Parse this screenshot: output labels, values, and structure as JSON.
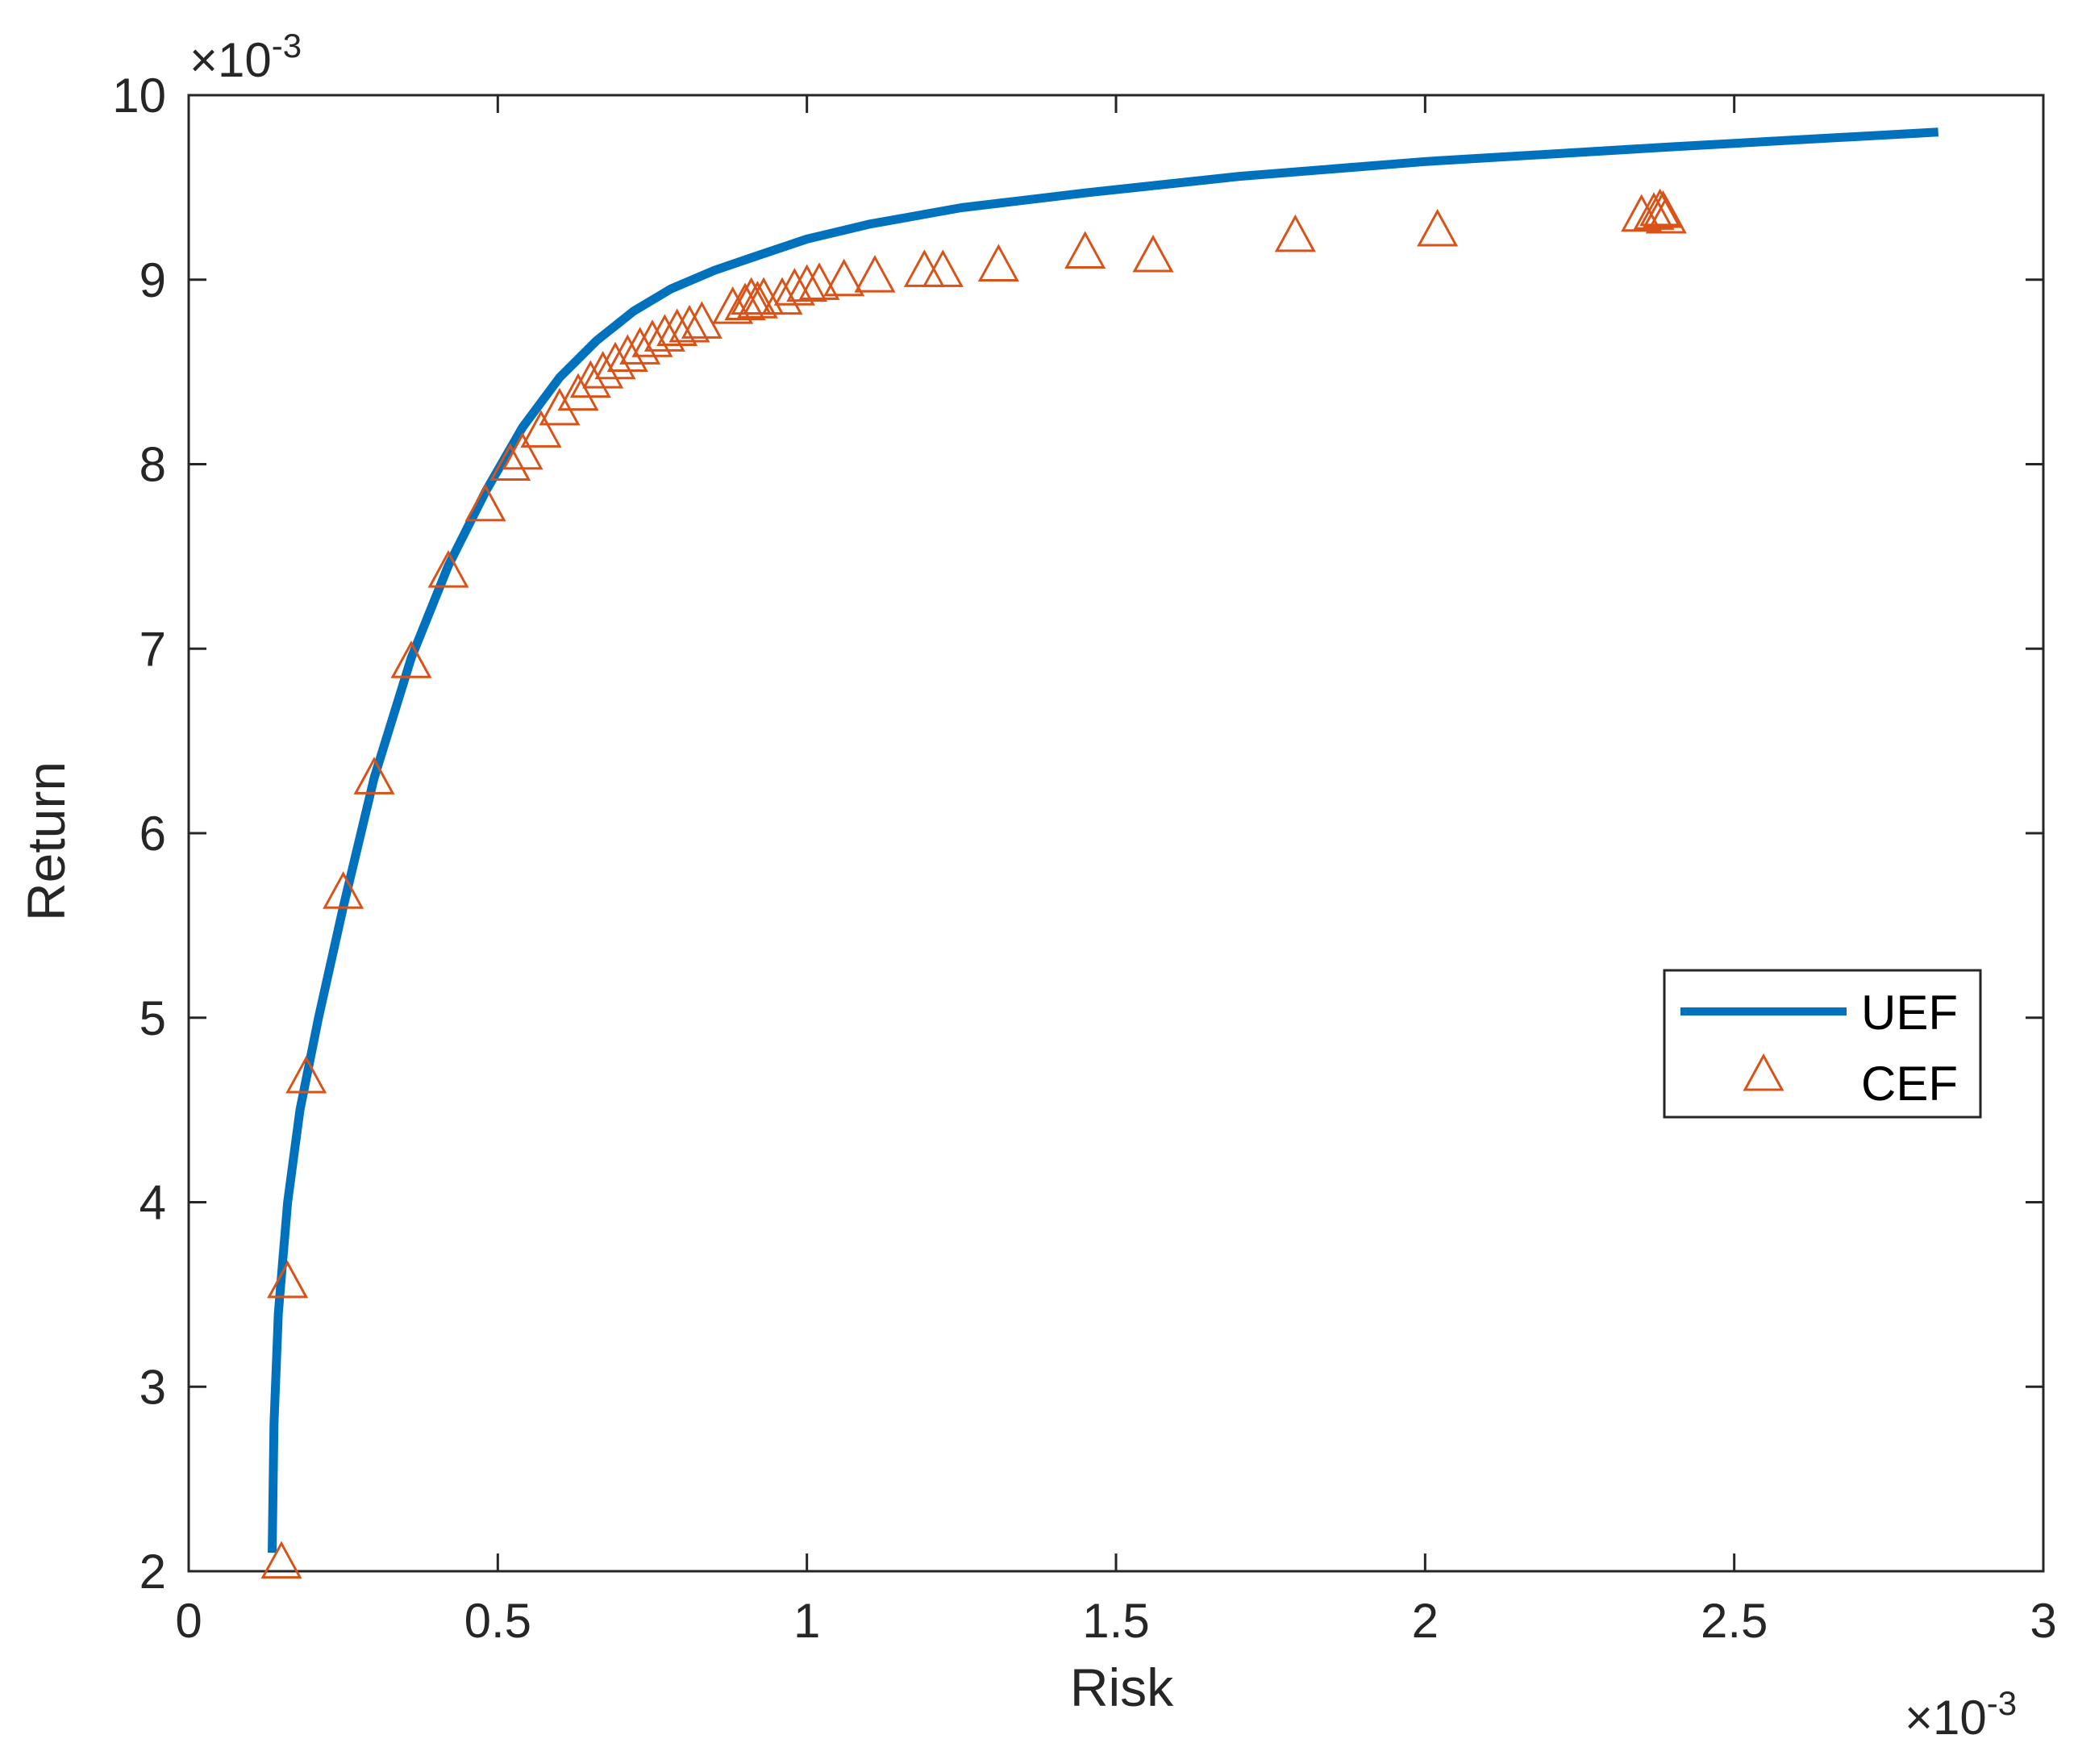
{
  "chart_data": {
    "type": "scatter",
    "xlabel": "Risk",
    "ylabel": "Return",
    "x_multiplier_label": "×10",
    "x_multiplier_exp": "-3",
    "y_multiplier_label": "×10",
    "y_multiplier_exp": "-3",
    "xlim": [
      0,
      3
    ],
    "ylim": [
      2,
      10
    ],
    "xticks": [
      0,
      0.5,
      1,
      1.5,
      2,
      2.5,
      3
    ],
    "xtick_labels": [
      "0",
      "0.5",
      "1",
      "1.5",
      "2",
      "2.5",
      "3"
    ],
    "yticks": [
      2,
      3,
      4,
      5,
      6,
      7,
      8,
      9,
      10
    ],
    "ytick_labels": [
      "2",
      "3",
      "4",
      "5",
      "6",
      "7",
      "8",
      "9",
      "10"
    ],
    "grid": false,
    "legend_position": "right",
    "series": [
      {
        "name": "UEF",
        "kind": "line",
        "color": "#0072BD",
        "x": [
          0.135,
          0.138,
          0.145,
          0.16,
          0.18,
          0.21,
          0.25,
          0.3,
          0.36,
          0.42,
          0.48,
          0.54,
          0.6,
          0.66,
          0.72,
          0.78,
          0.85,
          0.92,
          1.0,
          1.1,
          1.25,
          1.45,
          1.7,
          2.0,
          2.4,
          2.83
        ],
        "y": [
          2.1,
          2.8,
          3.4,
          4.0,
          4.5,
          5.0,
          5.6,
          6.3,
          6.95,
          7.45,
          7.85,
          8.2,
          8.47,
          8.67,
          8.83,
          8.95,
          9.05,
          9.13,
          9.22,
          9.3,
          9.39,
          9.47,
          9.56,
          9.64,
          9.72,
          9.8
        ]
      },
      {
        "name": "CEF",
        "kind": "markers",
        "marker": "triangle",
        "color": "#D95319",
        "x": [
          0.15,
          0.16,
          0.19,
          0.25,
          0.3,
          0.36,
          0.42,
          0.48,
          0.52,
          0.54,
          0.57,
          0.6,
          0.63,
          0.65,
          0.67,
          0.69,
          0.71,
          0.73,
          0.75,
          0.77,
          0.79,
          0.81,
          0.83,
          0.88,
          0.9,
          0.91,
          0.92,
          0.93,
          0.96,
          0.98,
          1.0,
          1.02,
          1.06,
          1.11,
          1.19,
          1.22,
          1.31,
          1.45,
          1.56,
          1.79,
          2.02,
          2.35,
          2.37,
          2.38,
          2.385,
          2.39
        ],
        "y": [
          2.05,
          3.57,
          4.68,
          5.68,
          6.3,
          6.93,
          7.42,
          7.78,
          8.0,
          8.06,
          8.18,
          8.3,
          8.38,
          8.45,
          8.5,
          8.55,
          8.59,
          8.63,
          8.67,
          8.7,
          8.73,
          8.75,
          8.77,
          8.85,
          8.87,
          8.9,
          8.88,
          8.9,
          8.9,
          8.95,
          8.97,
          8.98,
          9.0,
          9.02,
          9.05,
          9.05,
          9.08,
          9.15,
          9.13,
          9.24,
          9.27,
          9.35,
          9.36,
          9.38,
          9.37,
          9.34
        ]
      }
    ]
  }
}
